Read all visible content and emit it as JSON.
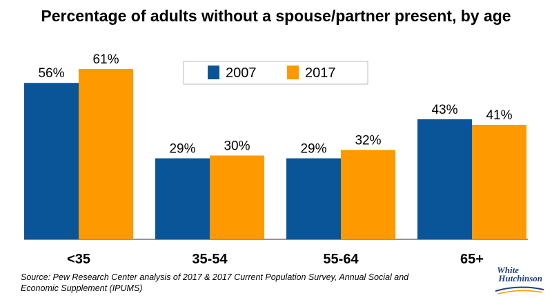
{
  "title": "Percentage of adults without a spouse/partner present, by age",
  "source": "Source: Pew Research Center analysis of 2017 & 2017 Current Population Survey, Annual Social and Economic Supplement (IPUMS)",
  "logo": {
    "line1": "White",
    "line2": "Hutchinson"
  },
  "chart_data": {
    "type": "bar",
    "title": "Percentage of adults without a spouse/partner present, by age",
    "categories": [
      "<35",
      "35-54",
      "55-64",
      "65+"
    ],
    "series": [
      {
        "name": "2007",
        "values": [
          56,
          29,
          29,
          43
        ],
        "labels": [
          "56%",
          "29%",
          "29%",
          "43%"
        ],
        "color": "#0a5597"
      },
      {
        "name": "2017",
        "values": [
          61,
          30,
          32,
          41
        ],
        "labels": [
          "61%",
          "30%",
          "32%",
          "41%"
        ],
        "color": "#ff9900"
      }
    ],
    "ylim": [
      0,
      70
    ],
    "grid": false,
    "legend_position": "top-center"
  }
}
